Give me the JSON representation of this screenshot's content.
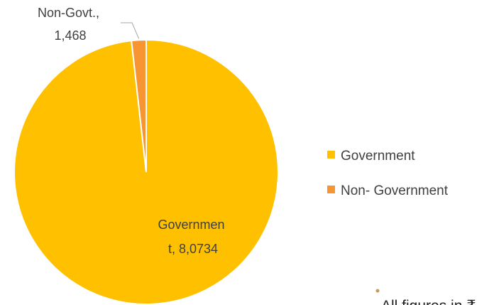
{
  "chart_data": {
    "type": "pie",
    "title": "",
    "categories": [
      "Government",
      "Non- Government"
    ],
    "values": [
      80734,
      1468
    ],
    "slices": [
      {
        "category": "Government",
        "value": 80734,
        "color": "#FFC000"
      },
      {
        "category": "Non- Government",
        "value": 1468,
        "color": "#F79533"
      }
    ],
    "data_labels": [
      {
        "line1": "Governmen",
        "line2": "t, 8,0734"
      },
      {
        "line1": "Non-Govt.,",
        "line2": "1,468"
      }
    ],
    "legend": {
      "placement": "right",
      "entries": [
        "Government",
        "Non- Government"
      ]
    }
  },
  "footnote": {
    "text": "All figures in ₹",
    "bullet_color": "#C59A5A"
  }
}
